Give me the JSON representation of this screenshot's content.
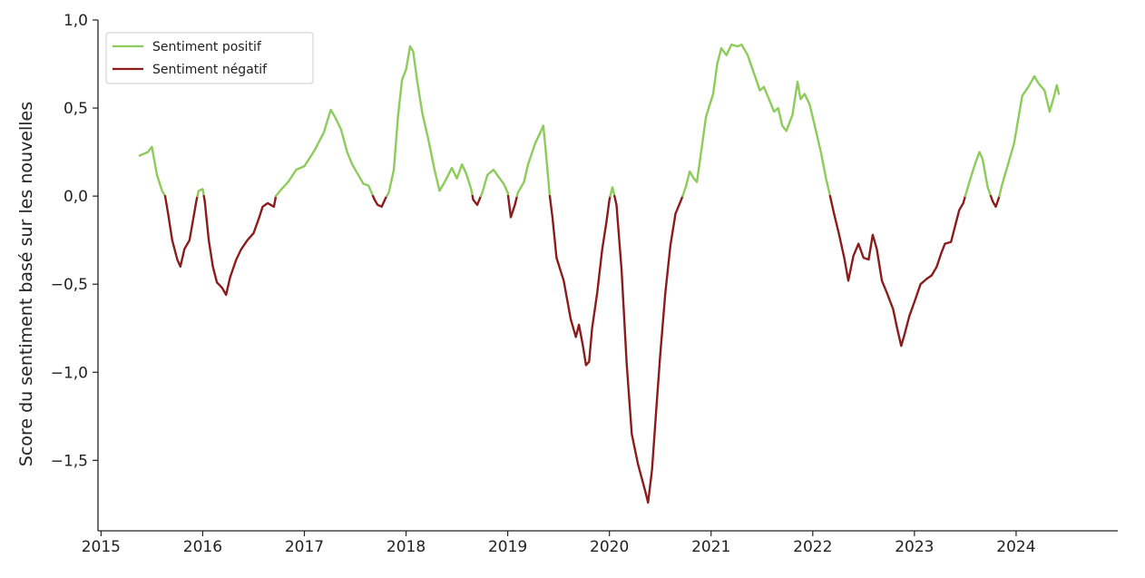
{
  "chart_data": {
    "type": "line",
    "title": "",
    "xlabel": "",
    "ylabel": "Score du sentiment basé sur les nouvelles",
    "xlim": [
      2014.97,
      2025.0
    ],
    "ylim": [
      -1.9,
      1.0
    ],
    "x_ticks": [
      2015,
      2016,
      2017,
      2018,
      2019,
      2020,
      2021,
      2022,
      2023,
      2024
    ],
    "x_tick_labels": [
      "2015",
      "2016",
      "2017",
      "2018",
      "2019",
      "2020",
      "2021",
      "2022",
      "2023",
      "2024"
    ],
    "y_ticks": [
      1.0,
      0.5,
      0.0,
      -0.5,
      -1.0,
      -1.5
    ],
    "y_tick_labels": [
      "1,0",
      "0,5",
      "0,0",
      "−0,5",
      "−1,0",
      "−1,5"
    ],
    "grid": false,
    "legend_position": "top-left",
    "series": [
      {
        "name": "Sentiment positif",
        "color": "#8dcb5a",
        "rule": "positive"
      },
      {
        "name": "Sentiment négatif",
        "color": "#8b1c1c",
        "rule": "negative"
      }
    ],
    "points": [
      [
        2015.38,
        0.23
      ],
      [
        2015.46,
        0.25
      ],
      [
        2015.5,
        0.28
      ],
      [
        2015.55,
        0.12
      ],
      [
        2015.6,
        0.03
      ],
      [
        2015.63,
        0.0
      ],
      [
        2015.66,
        -0.1
      ],
      [
        2015.7,
        -0.25
      ],
      [
        2015.75,
        -0.36
      ],
      [
        2015.78,
        -0.4
      ],
      [
        2015.82,
        -0.3
      ],
      [
        2015.87,
        -0.25
      ],
      [
        2015.91,
        -0.12
      ],
      [
        2015.94,
        -0.02
      ],
      [
        2015.96,
        0.03
      ],
      [
        2016.0,
        0.04
      ],
      [
        2016.02,
        -0.03
      ],
      [
        2016.06,
        -0.25
      ],
      [
        2016.1,
        -0.4
      ],
      [
        2016.14,
        -0.49
      ],
      [
        2016.19,
        -0.52
      ],
      [
        2016.23,
        -0.56
      ],
      [
        2016.27,
        -0.46
      ],
      [
        2016.33,
        -0.36
      ],
      [
        2016.38,
        -0.3
      ],
      [
        2016.44,
        -0.25
      ],
      [
        2016.5,
        -0.21
      ],
      [
        2016.55,
        -0.13
      ],
      [
        2016.59,
        -0.06
      ],
      [
        2016.64,
        -0.04
      ],
      [
        2016.7,
        -0.06
      ],
      [
        2016.72,
        0.0
      ],
      [
        2016.76,
        0.03
      ],
      [
        2016.84,
        0.08
      ],
      [
        2016.92,
        0.15
      ],
      [
        2017.0,
        0.17
      ],
      [
        2017.1,
        0.26
      ],
      [
        2017.19,
        0.36
      ],
      [
        2017.26,
        0.49
      ],
      [
        2017.3,
        0.45
      ],
      [
        2017.36,
        0.38
      ],
      [
        2017.42,
        0.25
      ],
      [
        2017.47,
        0.18
      ],
      [
        2017.53,
        0.12
      ],
      [
        2017.58,
        0.07
      ],
      [
        2017.63,
        0.06
      ],
      [
        2017.66,
        0.02
      ],
      [
        2017.69,
        -0.02
      ],
      [
        2017.72,
        -0.05
      ],
      [
        2017.76,
        -0.06
      ],
      [
        2017.8,
        -0.01
      ],
      [
        2017.83,
        0.02
      ],
      [
        2017.88,
        0.15
      ],
      [
        2017.92,
        0.45
      ],
      [
        2017.96,
        0.66
      ],
      [
        2018.0,
        0.72
      ],
      [
        2018.04,
        0.85
      ],
      [
        2018.07,
        0.82
      ],
      [
        2018.11,
        0.65
      ],
      [
        2018.16,
        0.47
      ],
      [
        2018.22,
        0.32
      ],
      [
        2018.28,
        0.15
      ],
      [
        2018.33,
        0.03
      ],
      [
        2018.38,
        0.08
      ],
      [
        2018.45,
        0.16
      ],
      [
        2018.5,
        0.1
      ],
      [
        2018.55,
        0.18
      ],
      [
        2018.59,
        0.13
      ],
      [
        2018.64,
        0.04
      ],
      [
        2018.66,
        -0.02
      ],
      [
        2018.7,
        -0.05
      ],
      [
        2018.75,
        0.02
      ],
      [
        2018.8,
        0.12
      ],
      [
        2018.86,
        0.15
      ],
      [
        2018.91,
        0.11
      ],
      [
        2018.96,
        0.07
      ],
      [
        2019.0,
        0.02
      ],
      [
        2019.03,
        -0.12
      ],
      [
        2019.07,
        -0.05
      ],
      [
        2019.1,
        0.02
      ],
      [
        2019.16,
        0.08
      ],
      [
        2019.2,
        0.18
      ],
      [
        2019.27,
        0.3
      ],
      [
        2019.32,
        0.36
      ],
      [
        2019.35,
        0.4
      ],
      [
        2019.37,
        0.28
      ],
      [
        2019.41,
        0.02
      ],
      [
        2019.44,
        -0.12
      ],
      [
        2019.48,
        -0.35
      ],
      [
        2019.55,
        -0.48
      ],
      [
        2019.62,
        -0.7
      ],
      [
        2019.67,
        -0.8
      ],
      [
        2019.7,
        -0.73
      ],
      [
        2019.74,
        -0.85
      ],
      [
        2019.77,
        -0.96
      ],
      [
        2019.8,
        -0.94
      ],
      [
        2019.83,
        -0.75
      ],
      [
        2019.88,
        -0.55
      ],
      [
        2019.93,
        -0.3
      ],
      [
        2019.97,
        -0.15
      ],
      [
        2020.0,
        -0.02
      ],
      [
        2020.03,
        0.05
      ],
      [
        2020.07,
        -0.05
      ],
      [
        2020.12,
        -0.42
      ],
      [
        2020.17,
        -0.95
      ],
      [
        2020.22,
        -1.35
      ],
      [
        2020.28,
        -1.52
      ],
      [
        2020.35,
        -1.67
      ],
      [
        2020.38,
        -1.74
      ],
      [
        2020.42,
        -1.55
      ],
      [
        2020.46,
        -1.22
      ],
      [
        2020.5,
        -0.9
      ],
      [
        2020.55,
        -0.55
      ],
      [
        2020.6,
        -0.28
      ],
      [
        2020.65,
        -0.1
      ],
      [
        2020.7,
        -0.03
      ],
      [
        2020.72,
        0.0
      ],
      [
        2020.75,
        0.05
      ],
      [
        2020.79,
        0.14
      ],
      [
        2020.83,
        0.1
      ],
      [
        2020.86,
        0.08
      ],
      [
        2020.89,
        0.2
      ],
      [
        2020.95,
        0.45
      ],
      [
        2021.02,
        0.58
      ],
      [
        2021.06,
        0.75
      ],
      [
        2021.1,
        0.84
      ],
      [
        2021.15,
        0.8
      ],
      [
        2021.2,
        0.86
      ],
      [
        2021.26,
        0.85
      ],
      [
        2021.3,
        0.86
      ],
      [
        2021.36,
        0.8
      ],
      [
        2021.42,
        0.7
      ],
      [
        2021.48,
        0.6
      ],
      [
        2021.52,
        0.62
      ],
      [
        2021.57,
        0.55
      ],
      [
        2021.62,
        0.48
      ],
      [
        2021.66,
        0.5
      ],
      [
        2021.7,
        0.4
      ],
      [
        2021.74,
        0.37
      ],
      [
        2021.8,
        0.46
      ],
      [
        2021.85,
        0.65
      ],
      [
        2021.88,
        0.55
      ],
      [
        2021.92,
        0.58
      ],
      [
        2021.97,
        0.52
      ],
      [
        2022.02,
        0.4
      ],
      [
        2022.08,
        0.25
      ],
      [
        2022.13,
        0.1
      ],
      [
        2022.17,
        0.0
      ],
      [
        2022.21,
        -0.1
      ],
      [
        2022.26,
        -0.22
      ],
      [
        2022.31,
        -0.35
      ],
      [
        2022.35,
        -0.48
      ],
      [
        2022.4,
        -0.34
      ],
      [
        2022.45,
        -0.27
      ],
      [
        2022.5,
        -0.35
      ],
      [
        2022.55,
        -0.36
      ],
      [
        2022.59,
        -0.22
      ],
      [
        2022.63,
        -0.3
      ],
      [
        2022.68,
        -0.48
      ],
      [
        2022.73,
        -0.55
      ],
      [
        2022.79,
        -0.64
      ],
      [
        2022.83,
        -0.75
      ],
      [
        2022.87,
        -0.85
      ],
      [
        2022.9,
        -0.79
      ],
      [
        2022.95,
        -0.68
      ],
      [
        2023.0,
        -0.6
      ],
      [
        2023.06,
        -0.5
      ],
      [
        2023.12,
        -0.47
      ],
      [
        2023.17,
        -0.45
      ],
      [
        2023.22,
        -0.4
      ],
      [
        2023.26,
        -0.33
      ],
      [
        2023.3,
        -0.27
      ],
      [
        2023.36,
        -0.26
      ],
      [
        2023.4,
        -0.17
      ],
      [
        2023.44,
        -0.08
      ],
      [
        2023.48,
        -0.04
      ],
      [
        2023.5,
        0.0
      ],
      [
        2023.54,
        0.08
      ],
      [
        2023.6,
        0.19
      ],
      [
        2023.64,
        0.25
      ],
      [
        2023.67,
        0.21
      ],
      [
        2023.72,
        0.05
      ],
      [
        2023.77,
        -0.03
      ],
      [
        2023.8,
        -0.06
      ],
      [
        2023.83,
        -0.01
      ],
      [
        2023.86,
        0.06
      ],
      [
        2023.92,
        0.18
      ],
      [
        2023.98,
        0.3
      ],
      [
        2024.06,
        0.57
      ],
      [
        2024.12,
        0.62
      ],
      [
        2024.18,
        0.68
      ],
      [
        2024.22,
        0.64
      ],
      [
        2024.28,
        0.6
      ],
      [
        2024.33,
        0.48
      ],
      [
        2024.37,
        0.56
      ],
      [
        2024.4,
        0.63
      ],
      [
        2024.42,
        0.58
      ]
    ]
  }
}
